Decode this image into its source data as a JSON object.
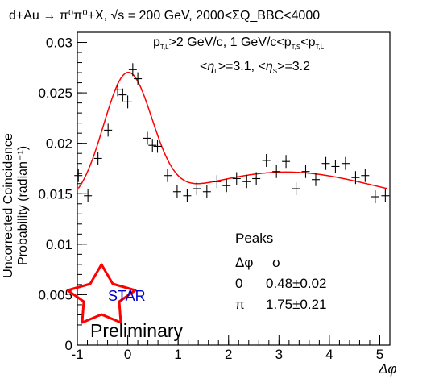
{
  "header": {
    "title": "d+Au → π⁰π⁰+X, √s = 200 GeV, 2000<ΣQ_BBC<4000"
  },
  "chart_data": {
    "type": "scatter",
    "title": "d+Au → π⁰π⁰+X, √s = 200 GeV, 2000<ΣQ_BBC<4000",
    "xlabel": "Δφ",
    "ylabel_line1": "Uncorrected Coincidence",
    "ylabel_line2": "Probability (radian⁻¹)",
    "xlim": [
      -1,
      5.2
    ],
    "ylim": [
      0,
      0.031
    ],
    "xticks": [
      -1,
      0,
      1,
      2,
      3,
      4,
      5
    ],
    "yticks": [
      0,
      0.005,
      0.01,
      0.015,
      0.02,
      0.025,
      0.03
    ],
    "ytick_labels": [
      "0",
      "0.005",
      "0.01",
      "0.015",
      "0.02",
      "0.025",
      "0.03"
    ],
    "cuts_line1": "p_T,L>2 GeV/c,  1 GeV/c<p_T,S<p_T,L",
    "cuts_line2": "<η_L>=3.1, <η_S>=3.2",
    "series": [
      {
        "kind": "points",
        "x": [
          -0.98,
          -0.79,
          -0.59,
          -0.39,
          -0.2,
          -0.1,
          0.0,
          0.1,
          0.2,
          0.39,
          0.49,
          0.59,
          0.79,
          0.98,
          1.18,
          1.37,
          1.57,
          1.77,
          1.96,
          2.16,
          2.36,
          2.55,
          2.75,
          2.95,
          3.14,
          3.34,
          3.53,
          3.73,
          3.93,
          4.12,
          4.32,
          4.52,
          4.71,
          4.91,
          5.11
        ],
        "y": [
          0.0168,
          0.0148,
          0.0185,
          0.0213,
          0.0253,
          0.0248,
          0.0241,
          0.0273,
          0.0264,
          0.0205,
          0.0198,
          0.0197,
          0.0168,
          0.0152,
          0.0148,
          0.0155,
          0.0152,
          0.0162,
          0.0158,
          0.0165,
          0.0162,
          0.0165,
          0.0183,
          0.0172,
          0.0182,
          0.0155,
          0.0172,
          0.0164,
          0.018,
          0.0177,
          0.018,
          0.0166,
          0.0168,
          0.0147,
          0.0148
        ],
        "color": "#000000"
      },
      {
        "kind": "fit",
        "fit_model": "Gaussian peaks at 0 and π plus constant",
        "fit_params": {
          "constant": 0.01375,
          "near_amplitude": 0.0126,
          "near_sigma": 0.48,
          "away_amplitude": 0.0034,
          "away_sigma": 1.75
        },
        "color": "#ff0000"
      }
    ],
    "peaks_table": {
      "title": "Peaks",
      "headers": [
        "Δφ",
        "σ"
      ],
      "rows": [
        [
          "0",
          "0.48±0.02"
        ],
        [
          "π",
          "1.75±0.21"
        ]
      ]
    }
  },
  "logo": {
    "text": "STAR",
    "star_color": "#ff0000",
    "text_color": "#0000cc"
  },
  "watermark": "Preliminary"
}
